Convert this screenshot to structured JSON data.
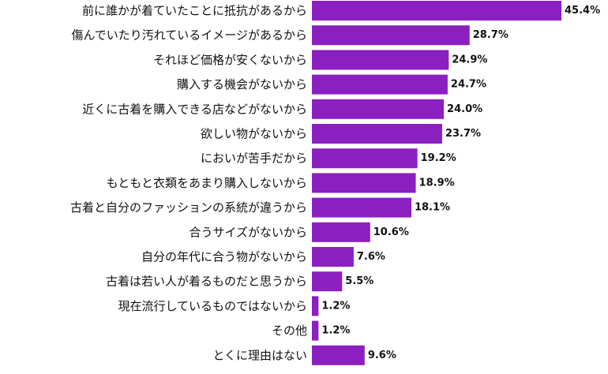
{
  "chart_data": {
    "type": "bar",
    "orientation": "horizontal",
    "categories": [
      "前に誰かが着ていたことに抵抗があるから",
      "傷んでいたり汚れているイメージがあるから",
      "それほど価格が安くないから",
      "購入する機会がないから",
      "近くに古着を購入できる店などがないから",
      "欲しい物がないから",
      "においが苦手だから",
      "もともと衣類をあまり購入しないから",
      "古着と自分のファッションの系統が違うから",
      "合うサイズがないから",
      "自分の年代に合う物がないから",
      "古着は若い人が着るものだと思うから",
      "現在流行しているものではないから",
      "その他",
      "とくに理由はない"
    ],
    "values": [
      45.4,
      28.7,
      24.9,
      24.7,
      24.0,
      23.7,
      19.2,
      18.9,
      18.1,
      10.6,
      7.6,
      5.5,
      1.2,
      1.2,
      9.6
    ],
    "value_labels": [
      "45.4%",
      "28.7%",
      "24.9%",
      "24.7%",
      "24.0%",
      "23.7%",
      "19.2%",
      "18.9%",
      "18.1%",
      "10.6%",
      "7.6%",
      "5.5%",
      "1.2%",
      "1.2%",
      "9.6%"
    ],
    "xlim": [
      0,
      45.4
    ],
    "bar_color": "#8B1FC0",
    "grid": false,
    "legend": "none"
  }
}
